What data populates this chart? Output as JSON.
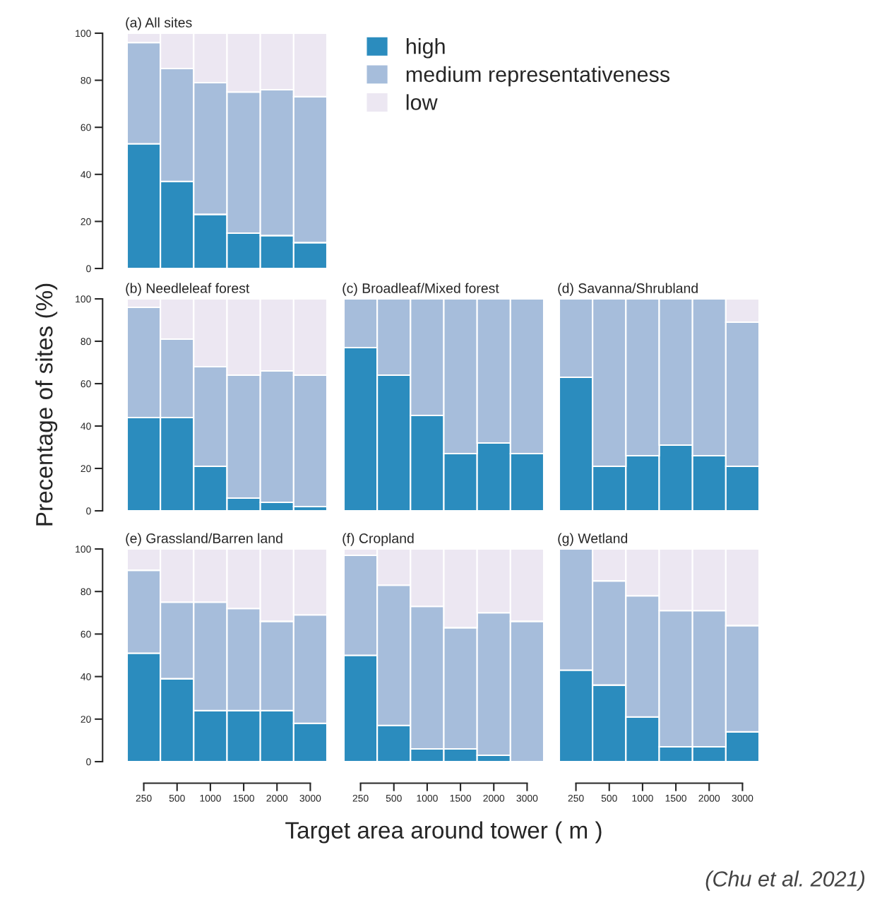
{
  "chart_data": [
    {
      "type": "bar",
      "stacked": true,
      "title": "(a) All sites",
      "categories": [
        "250",
        "500",
        "1000",
        "1500",
        "2000",
        "3000"
      ],
      "ylim": [
        0,
        100
      ],
      "yticks": [
        0,
        20,
        40,
        60,
        80,
        100
      ],
      "tick_labels": "y",
      "legend": "right",
      "series": [
        {
          "name": "high",
          "color": "#2b8cbe",
          "values": [
            53,
            37,
            23,
            15,
            14,
            11
          ]
        },
        {
          "name": "medium representativeness",
          "color": "#a6bddb",
          "values": [
            43,
            48,
            56,
            60,
            62,
            62
          ]
        },
        {
          "name": "low",
          "color": "#ece7f2",
          "values": [
            4,
            15,
            21,
            25,
            24,
            27
          ]
        }
      ]
    },
    {
      "type": "bar",
      "stacked": true,
      "title": "(b) Needleleaf forest",
      "ylabel": "Precentage of sites (%)",
      "categories": [
        "250",
        "500",
        "1000",
        "1500",
        "2000",
        "3000"
      ],
      "ylim": [
        0,
        100
      ],
      "yticks": [
        0,
        20,
        40,
        60,
        80,
        100
      ],
      "tick_labels": "y",
      "series": [
        {
          "color": "#2b8cbe",
          "values": [
            44,
            44,
            21,
            6,
            4,
            2
          ]
        },
        {
          "color": "#a6bddb",
          "values": [
            52,
            37,
            47,
            58,
            62,
            62
          ]
        },
        {
          "color": "#ece7f2",
          "values": [
            4,
            19,
            32,
            36,
            34,
            36
          ]
        }
      ]
    },
    {
      "type": "bar",
      "stacked": true,
      "title": "(c) Broadleaf/Mixed forest",
      "categories": [
        "250",
        "500",
        "1000",
        "1500",
        "2000",
        "3000"
      ],
      "ylim": [
        0,
        100
      ],
      "tick_labels": false,
      "series": [
        {
          "color": "#2b8cbe",
          "values": [
            77,
            64,
            45,
            27,
            32,
            27
          ]
        },
        {
          "color": "#a6bddb",
          "values": [
            23,
            36,
            55,
            73,
            68,
            73
          ]
        },
        {
          "color": "#ece7f2",
          "values": [
            0,
            0,
            0,
            0,
            0,
            0
          ]
        }
      ]
    },
    {
      "type": "bar",
      "stacked": true,
      "title": "(d) Savanna/Shrubland",
      "categories": [
        "250",
        "500",
        "1000",
        "1500",
        "2000",
        "3000"
      ],
      "ylim": [
        0,
        100
      ],
      "tick_labels": false,
      "series": [
        {
          "color": "#2b8cbe",
          "values": [
            63,
            21,
            26,
            31,
            26,
            21
          ]
        },
        {
          "color": "#a6bddb",
          "values": [
            37,
            79,
            74,
            69,
            74,
            68
          ]
        },
        {
          "color": "#ece7f2",
          "values": [
            0,
            0,
            0,
            0,
            0,
            11
          ]
        }
      ]
    },
    {
      "type": "bar",
      "stacked": true,
      "title": "(e) Grassland/Barren land",
      "categories": [
        "250",
        "500",
        "1000",
        "1500",
        "2000",
        "3000"
      ],
      "ylim": [
        0,
        100
      ],
      "yticks": [
        0,
        20,
        40,
        60,
        80,
        100
      ],
      "series": [
        {
          "color": "#2b8cbe",
          "values": [
            51,
            39,
            24,
            24,
            24,
            18
          ]
        },
        {
          "color": "#a6bddb",
          "values": [
            39,
            36,
            51,
            48,
            42,
            51
          ]
        },
        {
          "color": "#ece7f2",
          "values": [
            10,
            25,
            25,
            28,
            34,
            31
          ]
        }
      ]
    },
    {
      "type": "bar",
      "stacked": true,
      "title": "(f) Cropland",
      "xlabel": "Target area around tower ( m )",
      "categories": [
        "250",
        "500",
        "1000",
        "1500",
        "2000",
        "3000"
      ],
      "ylim": [
        0,
        100
      ],
      "tick_labels": "x",
      "series": [
        {
          "color": "#2b8cbe",
          "values": [
            50,
            17,
            6,
            6,
            3,
            0
          ]
        },
        {
          "color": "#a6bddb",
          "values": [
            47,
            66,
            67,
            57,
            67,
            66
          ]
        },
        {
          "color": "#ece7f2",
          "values": [
            3,
            17,
            27,
            37,
            30,
            34
          ]
        }
      ]
    },
    {
      "type": "bar",
      "stacked": true,
      "title": "(g) Wetland",
      "categories": [
        "250",
        "500",
        "1000",
        "1500",
        "2000",
        "3000"
      ],
      "ylim": [
        0,
        100
      ],
      "tick_labels": "x",
      "annotations": [
        "(Chu et al. 2021)"
      ],
      "series": [
        {
          "color": "#2b8cbe",
          "values": [
            43,
            36,
            21,
            7,
            7,
            14
          ]
        },
        {
          "color": "#a6bddb",
          "values": [
            57,
            49,
            57,
            64,
            64,
            50
          ]
        },
        {
          "color": "#ece7f2",
          "values": [
            0,
            15,
            22,
            29,
            29,
            36
          ]
        }
      ]
    }
  ]
}
